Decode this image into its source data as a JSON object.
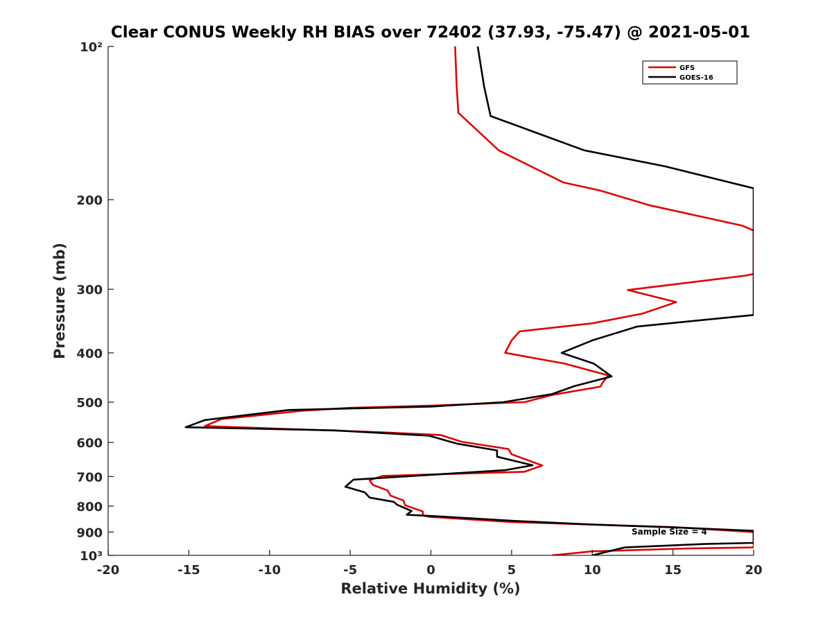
{
  "chart_data": {
    "type": "line",
    "title": "Clear CONUS Weekly RH BIAS over 72402 (37.93, -75.47) @ 2021-05-01",
    "xlabel": "Relative Humidity (%)",
    "ylabel": "Pressure (mb)",
    "xlim": [
      -20,
      20
    ],
    "ylim": [
      100,
      1000
    ],
    "yscale": "log",
    "yreversed": true,
    "xticks": [
      -20,
      -15,
      -10,
      -5,
      0,
      5,
      10,
      15,
      20
    ],
    "xtick_labels": [
      "-20",
      "-15",
      "-10",
      "-5",
      "0",
      "5",
      "10",
      "15",
      "20"
    ],
    "yticks": [
      100,
      200,
      300,
      400,
      500,
      600,
      700,
      800,
      900,
      1000
    ],
    "ytick_labels": [
      "10²",
      "200",
      "300",
      "400",
      "500",
      "600",
      "700",
      "800",
      "900",
      "10³"
    ],
    "legend": {
      "placement": "top-right"
    },
    "annotation": "Sample Size = 4",
    "series": [
      {
        "name": "GFS",
        "color": "#dd0000",
        "points": [
          [
            1.5,
            100
          ],
          [
            1.6,
            120
          ],
          [
            1.7,
            135
          ],
          [
            4.2,
            160
          ],
          [
            8.2,
            185
          ],
          [
            10.5,
            192
          ],
          [
            13.5,
            205
          ],
          [
            19.3,
            225
          ],
          [
            20,
            230
          ],
          [
            20,
            280
          ],
          [
            19.5,
            282
          ],
          [
            12.2,
            301
          ],
          [
            15.2,
            318
          ],
          [
            13.1,
            335
          ],
          [
            10,
            350
          ],
          [
            5.5,
            363
          ],
          [
            5.0,
            378
          ],
          [
            4.6,
            400
          ],
          [
            8.3,
            420
          ],
          [
            11.0,
            443
          ],
          [
            10.7,
            455
          ],
          [
            10.5,
            466
          ],
          [
            7.5,
            484
          ],
          [
            5.8,
            500
          ],
          [
            0,
            508
          ],
          [
            -5,
            513
          ],
          [
            -8,
            520
          ],
          [
            -13,
            540
          ],
          [
            -14,
            557
          ],
          [
            -3,
            573
          ],
          [
            0.6,
            580
          ],
          [
            1.9,
            598
          ],
          [
            4.8,
            618
          ],
          [
            5.0,
            633
          ],
          [
            6.9,
            666
          ],
          [
            5.8,
            685
          ],
          [
            -3,
            698
          ],
          [
            -3.8,
            712
          ],
          [
            -3.6,
            727
          ],
          [
            -2.7,
            745
          ],
          [
            -2.5,
            763
          ],
          [
            -1.7,
            780
          ],
          [
            -1.6,
            797
          ],
          [
            -0.5,
            820
          ],
          [
            -0.5,
            835
          ],
          [
            -0.1,
            840
          ],
          [
            5,
            860
          ],
          [
            10,
            870
          ],
          [
            15,
            880
          ],
          [
            20,
            900
          ],
          [
            20,
            965
          ],
          [
            16,
            969
          ],
          [
            10,
            982
          ],
          [
            7.5,
            1000
          ]
        ]
      },
      {
        "name": "GOES-16",
        "color": "#000000",
        "points": [
          [
            2.9,
            100
          ],
          [
            3.3,
            120
          ],
          [
            3.7,
            137
          ],
          [
            9.5,
            160
          ],
          [
            14.5,
            172
          ],
          [
            20,
            190
          ],
          [
            20,
            337
          ],
          [
            12.8,
            355
          ],
          [
            10.0,
            378
          ],
          [
            8.1,
            400
          ],
          [
            10.1,
            420
          ],
          [
            11.2,
            445
          ],
          [
            8.9,
            465
          ],
          [
            7.5,
            482
          ],
          [
            4.5,
            500
          ],
          [
            0,
            510
          ],
          [
            -8.8,
            518
          ],
          [
            -14,
            542
          ],
          [
            -15.2,
            560
          ],
          [
            -6,
            568
          ],
          [
            -0.1,
            582
          ],
          [
            1.6,
            603
          ],
          [
            4.1,
            622
          ],
          [
            4.1,
            640
          ],
          [
            6.3,
            665
          ],
          [
            4.6,
            680
          ],
          [
            -4.8,
            710
          ],
          [
            -5.3,
            733
          ],
          [
            -4.1,
            752
          ],
          [
            -3.8,
            770
          ],
          [
            -2.3,
            785
          ],
          [
            -2.1,
            795
          ],
          [
            -1.2,
            818
          ],
          [
            -1.5,
            832
          ],
          [
            0.4,
            838
          ],
          [
            5,
            855
          ],
          [
            10,
            870
          ],
          [
            15,
            881
          ],
          [
            20,
            895
          ],
          [
            20,
            945
          ],
          [
            17,
            950
          ],
          [
            12,
            965
          ],
          [
            10,
            1000
          ]
        ]
      }
    ]
  }
}
